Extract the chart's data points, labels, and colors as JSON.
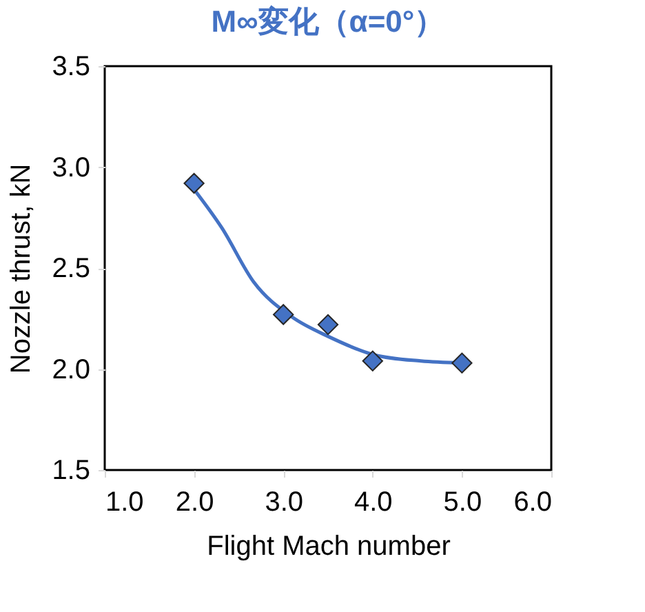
{
  "chart_data": {
    "type": "scatter",
    "title": "M∞変化（α=0°）",
    "xlabel": "Flight Mach number",
    "ylabel": "Nozzle thrust, kN",
    "xlim": [
      1.0,
      6.0
    ],
    "xticks": [
      {
        "value": 1,
        "label": "1.0"
      },
      {
        "value": 2,
        "label": "2.0"
      },
      {
        "value": 3,
        "label": "3.0"
      },
      {
        "value": 4,
        "label": "4.0"
      },
      {
        "value": 5,
        "label": "5.0"
      },
      {
        "value": 6,
        "label": "6.0"
      }
    ],
    "ylim": [
      1.5,
      3.5
    ],
    "yticks": [
      {
        "value": 1.5,
        "label": "1.5"
      },
      {
        "value": 2,
        "label": "2.0"
      },
      {
        "value": 2.5,
        "label": "2.5"
      },
      {
        "value": 3,
        "label": "3.0"
      },
      {
        "value": 3.5,
        "label": "3.5"
      }
    ],
    "grid": false,
    "series": [
      {
        "color": "#4472c4",
        "marker": "diamond",
        "x": [
          2.0,
          3.0,
          3.5,
          4.0,
          5.0
        ],
        "values": [
          2.92,
          2.27,
          2.22,
          2.04,
          2.03
        ]
      },
      {
        "type": "line",
        "color": "#4472c4",
        "line_style": "solid",
        "x": [
          2.0,
          2.31,
          2.67,
          3.09,
          3.51,
          4.02,
          4.54,
          4.99
        ],
        "values": [
          2.89,
          2.7,
          2.43,
          2.26,
          2.16,
          2.07,
          2.04,
          2.03
        ]
      }
    ]
  }
}
